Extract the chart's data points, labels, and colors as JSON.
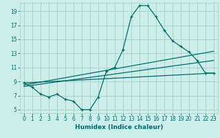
{
  "xlabel": "Humidex (Indice chaleur)",
  "bg_color": "#cceee8",
  "grid_color": "#aad4ce",
  "line_color": "#006b6b",
  "xlim": [
    -0.5,
    23.5
  ],
  "ylim": [
    4.5,
    20.2
  ],
  "xticks": [
    0,
    1,
    2,
    3,
    4,
    5,
    6,
    7,
    8,
    9,
    10,
    11,
    12,
    13,
    14,
    15,
    16,
    17,
    18,
    19,
    20,
    21,
    22,
    23
  ],
  "yticks": [
    5,
    7,
    9,
    11,
    13,
    15,
    17,
    19
  ],
  "series1_x": [
    0,
    1,
    2,
    3,
    4,
    5,
    6,
    7,
    8,
    9,
    10,
    11,
    12,
    13,
    14,
    15,
    16,
    17,
    18,
    19,
    20,
    21,
    22,
    23
  ],
  "series1_y": [
    8.8,
    8.2,
    7.2,
    6.8,
    7.2,
    6.5,
    6.2,
    5.0,
    5.0,
    6.8,
    10.5,
    11.0,
    13.5,
    18.2,
    19.8,
    19.8,
    18.2,
    16.3,
    14.8,
    14.0,
    13.2,
    12.0,
    10.2,
    10.2
  ],
  "series2_x": [
    0,
    23
  ],
  "series2_y": [
    8.8,
    10.2
  ],
  "series3_x": [
    0,
    23
  ],
  "series3_y": [
    8.5,
    13.3
  ],
  "series4_x": [
    0,
    23
  ],
  "series4_y": [
    8.3,
    12.0
  ]
}
